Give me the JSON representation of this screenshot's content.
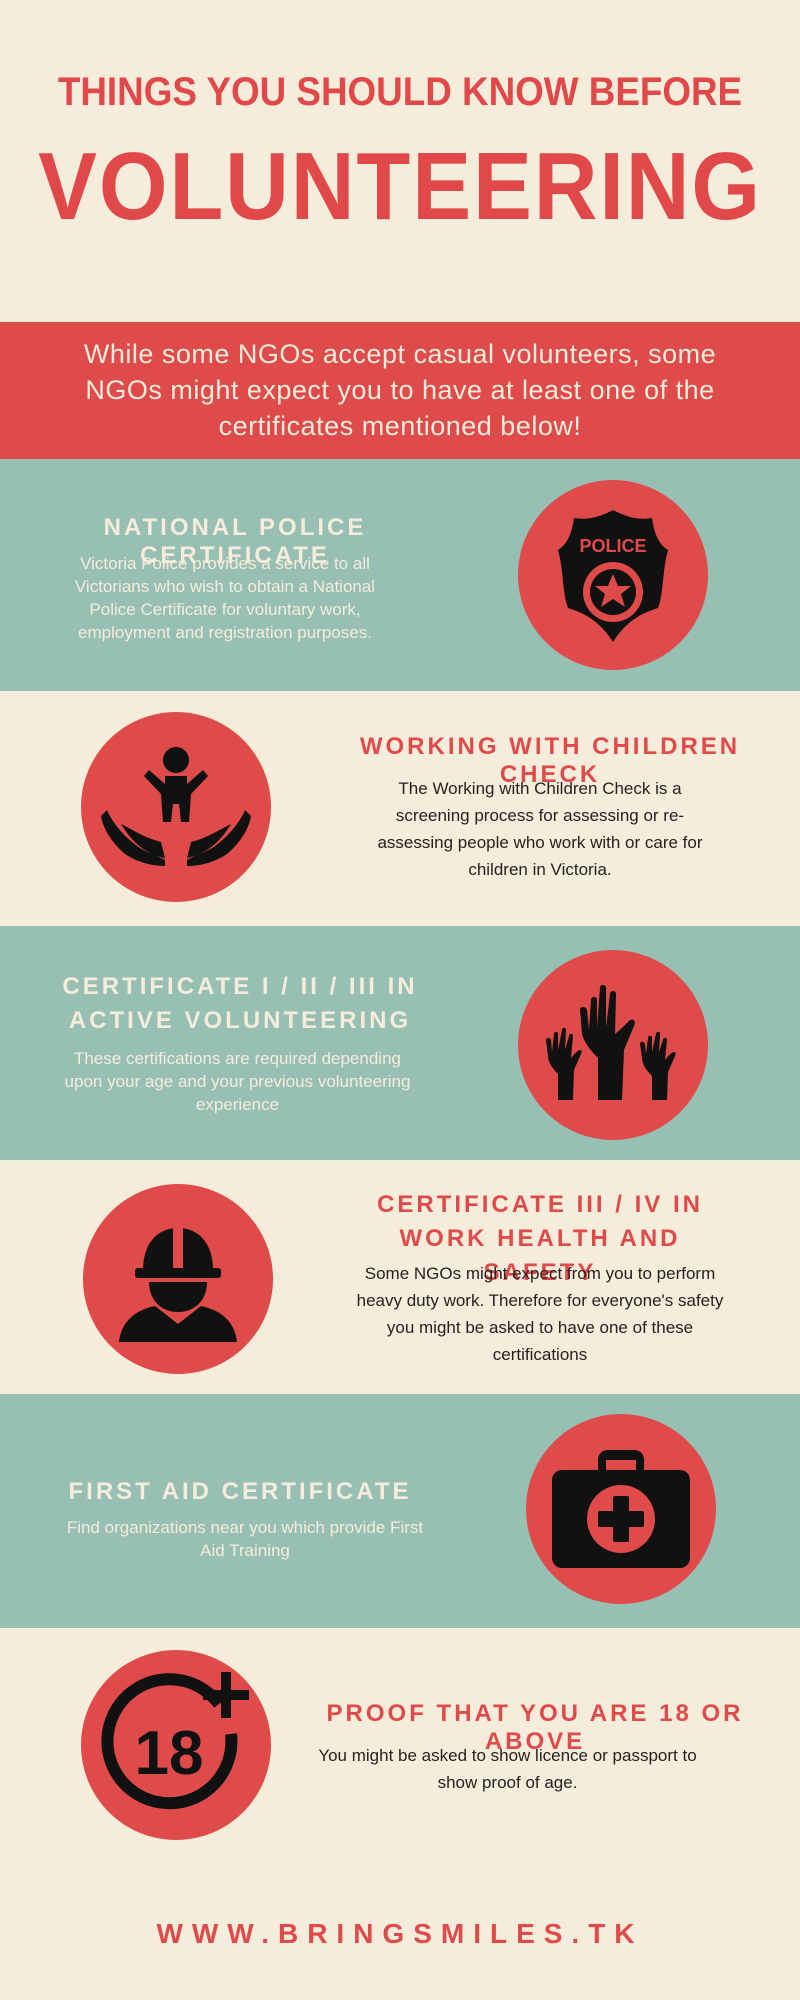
{
  "header": {
    "line1": "THINGS YOU SHOULD KNOW BEFORE",
    "line2": "VOLUNTEERING"
  },
  "intro": {
    "text": "While some NGOs accept casual volunteers, some NGOs might expect you to have at least one of the certificates mentioned below!"
  },
  "sections": [
    {
      "title": "NATIONAL POLICE CERTIFICATE",
      "body": "Victoria Police provides a service to all Victorians who wish to obtain a National Police Certificate for voluntary work, employment and registration purposes.",
      "icon": "police-badge-icon",
      "icon_text": "POLICE"
    },
    {
      "title": "WORKING WITH CHILDREN CHECK",
      "body": "The Working with Children Check is a screening process for assessing or re-assessing people who work with or care for children in Victoria.",
      "icon": "child-in-hands-icon"
    },
    {
      "title": "CERTIFICATE I / II / III IN ACTIVE VOLUNTEERING",
      "body": "These certifications are required depending upon your age and your previous volunteering experience",
      "icon": "raised-hands-icon"
    },
    {
      "title": "CERTIFICATE III / IV IN WORK HEALTH AND SAFETY",
      "body": "Some NGOs might expect from you to perform heavy duty work. Therefore for everyone's safety you might be asked to have one of these certifications",
      "icon": "hardhat-worker-icon"
    },
    {
      "title": "FIRST AID CERTIFICATE",
      "body": "Find organizations near you which provide First Aid Training",
      "icon": "first-aid-kit-icon"
    },
    {
      "title": "PROOF THAT YOU ARE 18 OR ABOVE",
      "body": "You might be asked to show licence or passport to show proof of age.",
      "icon": "eighteen-plus-icon",
      "icon_text": "18"
    }
  ],
  "footer": {
    "url": "WWW.BRINGSMILES.TK"
  },
  "colors": {
    "background": "#f6ecdb",
    "accent_red": "#df4a4a",
    "teal": "#97bfb4",
    "icon_black": "#111111"
  }
}
